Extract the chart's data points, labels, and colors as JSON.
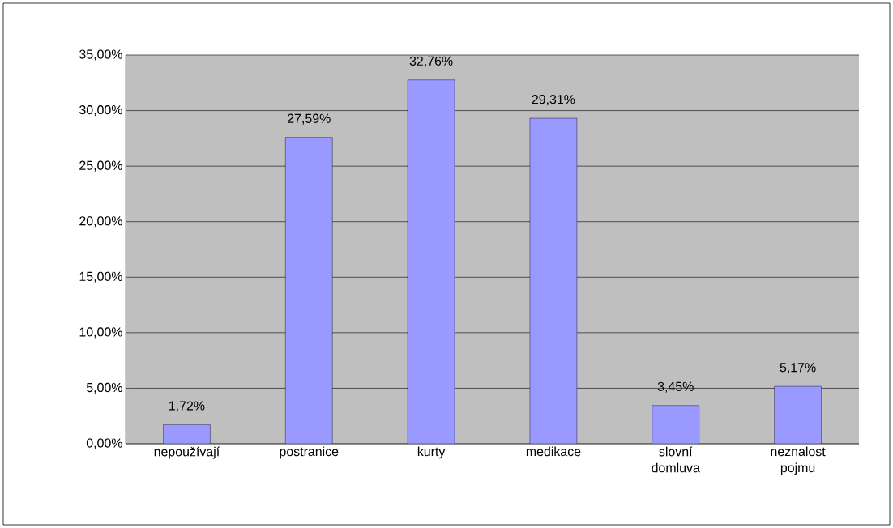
{
  "chart_data": {
    "type": "bar",
    "categories": [
      "nepoužívají",
      "postranice",
      "kurty",
      "medikace",
      "slovní domluva",
      "neznalost pojmu"
    ],
    "values": [
      1.72,
      27.59,
      32.76,
      29.31,
      3.45,
      5.17
    ],
    "value_labels": [
      "1,72%",
      "27,59%",
      "32,76%",
      "29,31%",
      "3,45%",
      "5,17%"
    ],
    "color": "#9999ff",
    "ylim": [
      0,
      35
    ],
    "yticks": [
      {
        "value": 0,
        "label": "0,00%"
      },
      {
        "value": 5,
        "label": "5,00%"
      },
      {
        "value": 10,
        "label": "10,00%"
      },
      {
        "value": 15,
        "label": "15,00%"
      },
      {
        "value": 20,
        "label": "20,00%"
      },
      {
        "value": 25,
        "label": "25,00%"
      },
      {
        "value": 30,
        "label": "30,00%"
      },
      {
        "value": 35,
        "label": "35,00%"
      }
    ],
    "grid": "y"
  }
}
